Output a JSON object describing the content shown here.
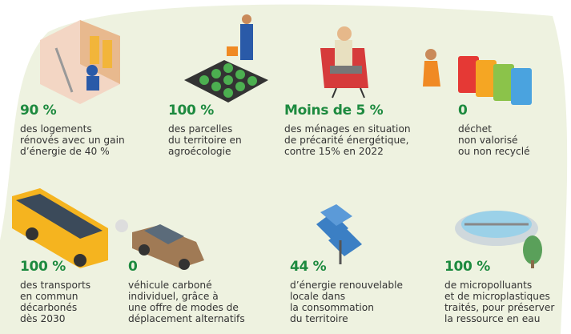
{
  "items": [
    {
      "stat": "90 %",
      "description": [
        "des logements",
        "rénovés avec un gain",
        "d’énergie de 40 %"
      ]
    },
    {
      "stat": "100 %",
      "description": [
        "des parcelles",
        "du territoire en",
        "agroécologie"
      ]
    },
    {
      "stat": "Moins de 5 %",
      "description": [
        "des ménages en situation",
        "de précarité énergétique,",
        "contre 15% en 2022"
      ]
    },
    {
      "stat": "0",
      "description": [
        "déchet",
        "non valorisé",
        "ou non recyclé"
      ]
    },
    {
      "stat": "100 %",
      "description": [
        "des transports",
        "en commun",
        "décarbonés",
        "dès 2030"
      ]
    },
    {
      "stat": "0",
      "description": [
        "véhicule carboné",
        "individuel, grâce à",
        "une offre de modes de",
        "déplacement alternatifs"
      ]
    },
    {
      "stat": "44 %",
      "description": [
        "d’énergie renouvelable",
        "locale dans",
        "la consommation",
        "du territoire"
      ]
    },
    {
      "stat": "100 %",
      "description": [
        "de micropolluants",
        "et de microplastiques",
        "traités, pour préserver",
        "la ressource en eau"
      ]
    }
  ]
}
